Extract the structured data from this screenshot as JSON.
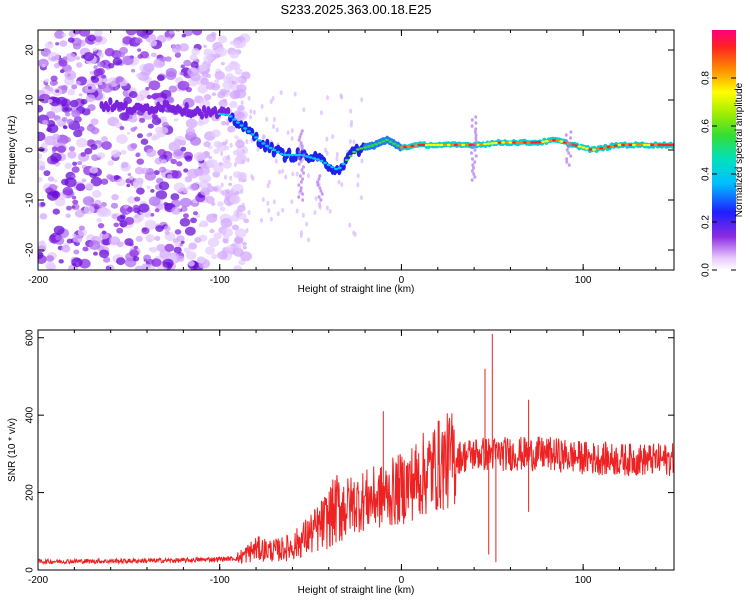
{
  "title": "S233.2025.363.00.18.E25",
  "colors": {
    "snr_line": "#ee2222",
    "frame": "#000000"
  },
  "chart_data": [
    {
      "type": "heatmap",
      "name": "spectrogram",
      "xlabel": "Height of straight line (km)",
      "ylabel": "Frequency (Hz)",
      "xlim": [
        -200,
        150
      ],
      "ylim": [
        -24,
        24
      ],
      "xticks": [
        -200,
        -100,
        0,
        100
      ],
      "xtick_labels": [
        "-200",
        "-100",
        "0",
        "100"
      ],
      "yticks": [
        -20,
        -10,
        0,
        10,
        20
      ],
      "ytick_labels": [
        "-20",
        "-10",
        "0",
        "10",
        "20"
      ],
      "colorbar": {
        "label": "Normalized spectral amplitude",
        "range": [
          0,
          1
        ],
        "ticks": [
          0.0,
          0.2,
          0.4,
          0.6,
          0.8
        ],
        "tick_labels": [
          "0.0",
          "0.2",
          "0.4",
          "0.6",
          "0.8"
        ]
      },
      "ridge": [
        {
          "x": -160,
          "f": 9
        },
        {
          "x": -145,
          "f": 8
        },
        {
          "x": -130,
          "f": 9
        },
        {
          "x": -118,
          "f": 8
        },
        {
          "x": -95,
          "f": 7
        },
        {
          "x": -85,
          "f": 4
        },
        {
          "x": -75,
          "f": 1
        },
        {
          "x": -65,
          "f": -1
        },
        {
          "x": -55,
          "f": -1
        },
        {
          "x": -45,
          "f": -2
        },
        {
          "x": -35,
          "f": -4
        },
        {
          "x": -25,
          "f": 0
        },
        {
          "x": -15,
          "f": 1
        },
        {
          "x": -8,
          "f": 2
        },
        {
          "x": 0,
          "f": 0.5
        },
        {
          "x": 10,
          "f": 1
        },
        {
          "x": 30,
          "f": 1
        },
        {
          "x": 40,
          "f": 1
        },
        {
          "x": 55,
          "f": 1.5
        },
        {
          "x": 75,
          "f": 1.5
        },
        {
          "x": 85,
          "f": 2
        },
        {
          "x": 95,
          "f": 1
        },
        {
          "x": 105,
          "f": 0
        },
        {
          "x": 120,
          "f": 1
        },
        {
          "x": 150,
          "f": 1
        }
      ]
    },
    {
      "type": "line",
      "name": "snr",
      "xlabel": "Height of straight line (km)",
      "ylabel": "SNR (10 * v/v)",
      "xlim": [
        -200,
        150
      ],
      "ylim": [
        0,
        620
      ],
      "xticks": [
        -200,
        -100,
        0,
        100
      ],
      "xtick_labels": [
        "-200",
        "-100",
        "0",
        "100"
      ],
      "yticks": [
        0,
        200,
        400,
        600
      ],
      "ytick_labels": [
        "0",
        "200",
        "400",
        "600"
      ],
      "trend": [
        {
          "x": -200,
          "y": 22
        },
        {
          "x": -160,
          "y": 23
        },
        {
          "x": -120,
          "y": 25
        },
        {
          "x": -90,
          "y": 30
        },
        {
          "x": -80,
          "y": 55
        },
        {
          "x": -70,
          "y": 50
        },
        {
          "x": -60,
          "y": 60
        },
        {
          "x": -45,
          "y": 110
        },
        {
          "x": -35,
          "y": 160
        },
        {
          "x": -20,
          "y": 180
        },
        {
          "x": -10,
          "y": 190
        },
        {
          "x": 0,
          "y": 210
        },
        {
          "x": 10,
          "y": 240
        },
        {
          "x": 20,
          "y": 270
        },
        {
          "x": 30,
          "y": 290
        },
        {
          "x": 40,
          "y": 300
        },
        {
          "x": 60,
          "y": 300
        },
        {
          "x": 80,
          "y": 300
        },
        {
          "x": 100,
          "y": 290
        },
        {
          "x": 120,
          "y": 285
        },
        {
          "x": 150,
          "y": 285
        }
      ],
      "features": [
        {
          "x": -10,
          "y": 410
        },
        {
          "x": 46,
          "y": 520
        },
        {
          "x": 48,
          "y": 40
        },
        {
          "x": 50,
          "y": 610
        },
        {
          "x": 52,
          "y": 20
        },
        {
          "x": 70,
          "y": 440
        },
        {
          "x": 70,
          "y": 150
        }
      ]
    }
  ]
}
